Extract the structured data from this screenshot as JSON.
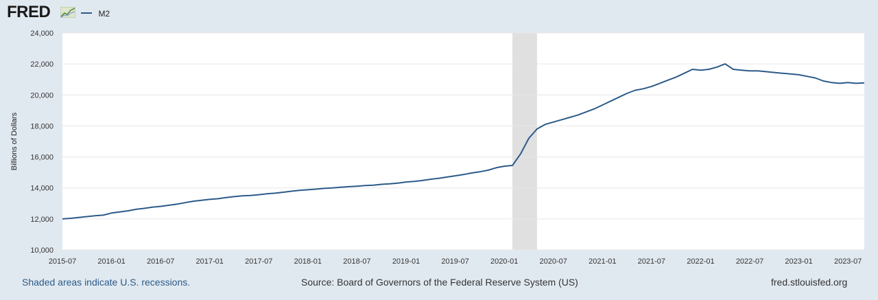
{
  "header": {
    "logo_text": "FRED",
    "legend_series": "M2"
  },
  "colors": {
    "background": "#e1e9f0",
    "plot_background": "#ffffff",
    "series_line": "#2b5a89",
    "recession_shade": "#e0e0e0",
    "gridline": "#e6e6e6"
  },
  "footer": {
    "recession_note": "Shaded areas indicate U.S. recessions.",
    "source": "Source: Board of Governors of the Federal Reserve System (US)",
    "site": "fred.stlouisfed.org"
  },
  "chart_data": {
    "type": "line",
    "title": "",
    "xlabel": "",
    "ylabel": "Billions of Dollars",
    "xlim": [
      "2015-07",
      "2023-09"
    ],
    "ylim": [
      10000,
      24000
    ],
    "grid": true,
    "legend_position": "top-left",
    "y_ticks": [
      "10,000",
      "12,000",
      "14,000",
      "16,000",
      "18,000",
      "20,000",
      "22,000",
      "24,000"
    ],
    "x_ticks": [
      "2015-07",
      "2016-01",
      "2016-07",
      "2017-01",
      "2017-07",
      "2018-01",
      "2018-07",
      "2019-01",
      "2019-07",
      "2020-01",
      "2020-07",
      "2021-01",
      "2021-07",
      "2022-01",
      "2022-07",
      "2023-01",
      "2023-07"
    ],
    "recessions": [
      {
        "start": "2020-02",
        "end": "2020-04"
      }
    ],
    "series": [
      {
        "name": "M2",
        "x": [
          "2015-07",
          "2015-08",
          "2015-09",
          "2015-10",
          "2015-11",
          "2015-12",
          "2016-01",
          "2016-02",
          "2016-03",
          "2016-04",
          "2016-05",
          "2016-06",
          "2016-07",
          "2016-08",
          "2016-09",
          "2016-10",
          "2016-11",
          "2016-12",
          "2017-01",
          "2017-02",
          "2017-03",
          "2017-04",
          "2017-05",
          "2017-06",
          "2017-07",
          "2017-08",
          "2017-09",
          "2017-10",
          "2017-11",
          "2017-12",
          "2018-01",
          "2018-02",
          "2018-03",
          "2018-04",
          "2018-05",
          "2018-06",
          "2018-07",
          "2018-08",
          "2018-09",
          "2018-10",
          "2018-11",
          "2018-12",
          "2019-01",
          "2019-02",
          "2019-03",
          "2019-04",
          "2019-05",
          "2019-06",
          "2019-07",
          "2019-08",
          "2019-09",
          "2019-10",
          "2019-11",
          "2019-12",
          "2020-01",
          "2020-02",
          "2020-03",
          "2020-04",
          "2020-05",
          "2020-06",
          "2020-07",
          "2020-08",
          "2020-09",
          "2020-10",
          "2020-11",
          "2020-12",
          "2021-01",
          "2021-02",
          "2021-03",
          "2021-04",
          "2021-05",
          "2021-06",
          "2021-07",
          "2021-08",
          "2021-09",
          "2021-10",
          "2021-11",
          "2021-12",
          "2022-01",
          "2022-02",
          "2022-03",
          "2022-04",
          "2022-05",
          "2022-06",
          "2022-07",
          "2022-08",
          "2022-09",
          "2022-10",
          "2022-11",
          "2022-12",
          "2023-01",
          "2023-02",
          "2023-03",
          "2023-04",
          "2023-05",
          "2023-06",
          "2023-07",
          "2023-08",
          "2023-09"
        ],
        "values": [
          12000,
          12040,
          12090,
          12150,
          12200,
          12240,
          12380,
          12450,
          12520,
          12620,
          12680,
          12760,
          12810,
          12880,
          12950,
          13050,
          13140,
          13200,
          13260,
          13300,
          13380,
          13440,
          13490,
          13510,
          13560,
          13620,
          13660,
          13720,
          13790,
          13840,
          13880,
          13920,
          13970,
          14000,
          14040,
          14080,
          14110,
          14150,
          14180,
          14230,
          14260,
          14310,
          14380,
          14420,
          14480,
          14560,
          14620,
          14700,
          14780,
          14860,
          14960,
          15040,
          15140,
          15300,
          15400,
          15450,
          16200,
          17200,
          17800,
          18100,
          18250,
          18400,
          18550,
          18700,
          18900,
          19100,
          19350,
          19600,
          19850,
          20100,
          20300,
          20400,
          20550,
          20750,
          20950,
          21150,
          21400,
          21650,
          21600,
          21650,
          21800,
          22000,
          21650,
          21600,
          21550,
          21550,
          21500,
          21450,
          21400,
          21350,
          21300,
          21200,
          21100,
          20900,
          20800,
          20750,
          20800,
          20750,
          20780
        ]
      }
    ]
  }
}
